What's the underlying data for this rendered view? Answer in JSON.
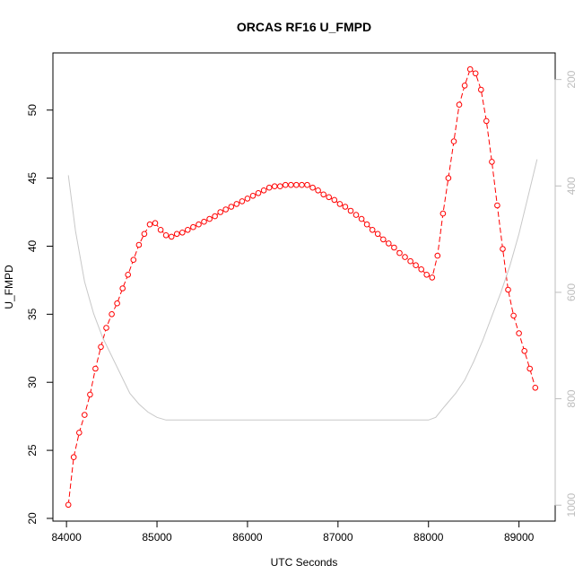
{
  "chart_data": {
    "type": "line",
    "title": "ORCAS RF16 U_FMPD",
    "xlabel": "UTC Seconds",
    "ylabel": "U_FMPD",
    "xlim": [
      83850,
      89400
    ],
    "ylim": [
      19.8,
      54.2
    ],
    "y2lim": [
      1030,
      150
    ],
    "y2_reversed": true,
    "grid": false,
    "x_ticks": [
      84000,
      85000,
      86000,
      87000,
      88000,
      89000
    ],
    "y_ticks": [
      20,
      25,
      30,
      35,
      40,
      45,
      50
    ],
    "y2_ticks": [
      200,
      400,
      600,
      800,
      1000
    ],
    "series": [
      {
        "color": "#ff0000",
        "marker": "circle-open",
        "axis": "left",
        "x": [
          84020,
          84080,
          84140,
          84200,
          84260,
          84320,
          84380,
          84440,
          84500,
          84560,
          84620,
          84680,
          84740,
          84800,
          84860,
          84920,
          84980,
          85040,
          85100,
          85160,
          85220,
          85280,
          85340,
          85400,
          85460,
          85520,
          85580,
          85640,
          85700,
          85760,
          85820,
          85880,
          85940,
          86000,
          86060,
          86120,
          86180,
          86240,
          86300,
          86360,
          86420,
          86480,
          86540,
          86600,
          86660,
          86720,
          86780,
          86840,
          86900,
          86960,
          87020,
          87080,
          87140,
          87200,
          87260,
          87320,
          87380,
          87440,
          87500,
          87560,
          87620,
          87680,
          87740,
          87800,
          87860,
          87920,
          87980,
          88040,
          88100,
          88160,
          88220,
          88280,
          88340,
          88400,
          88460,
          88520,
          88580,
          88640,
          88700,
          88760,
          88820,
          88880,
          88940,
          89000,
          89060,
          89120,
          89180
        ],
        "values": [
          21.0,
          24.5,
          26.3,
          27.6,
          29.1,
          31.0,
          32.6,
          34.0,
          35.0,
          35.8,
          36.9,
          37.9,
          39.0,
          40.1,
          40.9,
          41.6,
          41.7,
          41.2,
          40.8,
          40.7,
          40.9,
          41.0,
          41.2,
          41.4,
          41.6,
          41.8,
          42.0,
          42.2,
          42.5,
          42.7,
          42.9,
          43.1,
          43.3,
          43.5,
          43.7,
          43.9,
          44.1,
          44.3,
          44.4,
          44.4,
          44.5,
          44.5,
          44.5,
          44.5,
          44.5,
          44.3,
          44.1,
          43.8,
          43.6,
          43.4,
          43.1,
          42.9,
          42.6,
          42.3,
          42.0,
          41.6,
          41.2,
          40.9,
          40.5,
          40.2,
          39.9,
          39.5,
          39.2,
          38.9,
          38.6,
          38.3,
          37.9,
          37.7,
          39.3,
          42.4,
          45.0,
          47.7,
          50.4,
          51.8,
          53.0,
          52.7,
          51.5,
          49.2,
          46.2,
          43.0,
          39.8,
          36.8,
          34.9,
          33.6,
          32.3,
          31.0,
          29.6
        ]
      },
      {
        "color": "#c8c8c8",
        "marker": "none",
        "axis": "right",
        "x": [
          84020,
          84100,
          84200,
          84300,
          84400,
          84500,
          84600,
          84700,
          84800,
          84900,
          85000,
          85100,
          85200,
          85400,
          85600,
          85800,
          86000,
          86500,
          87000,
          87500,
          88000,
          88080,
          88150,
          88200,
          88300,
          88400,
          88500,
          88600,
          88700,
          88800,
          88900,
          89000,
          89100,
          89200
        ],
        "values": [
          380,
          485,
          580,
          640,
          685,
          720,
          755,
          790,
          810,
          825,
          835,
          840,
          840,
          840,
          840,
          840,
          840,
          840,
          840,
          840,
          840,
          835,
          820,
          810,
          790,
          765,
          730,
          690,
          645,
          600,
          550,
          490,
          420,
          350
        ]
      }
    ]
  }
}
